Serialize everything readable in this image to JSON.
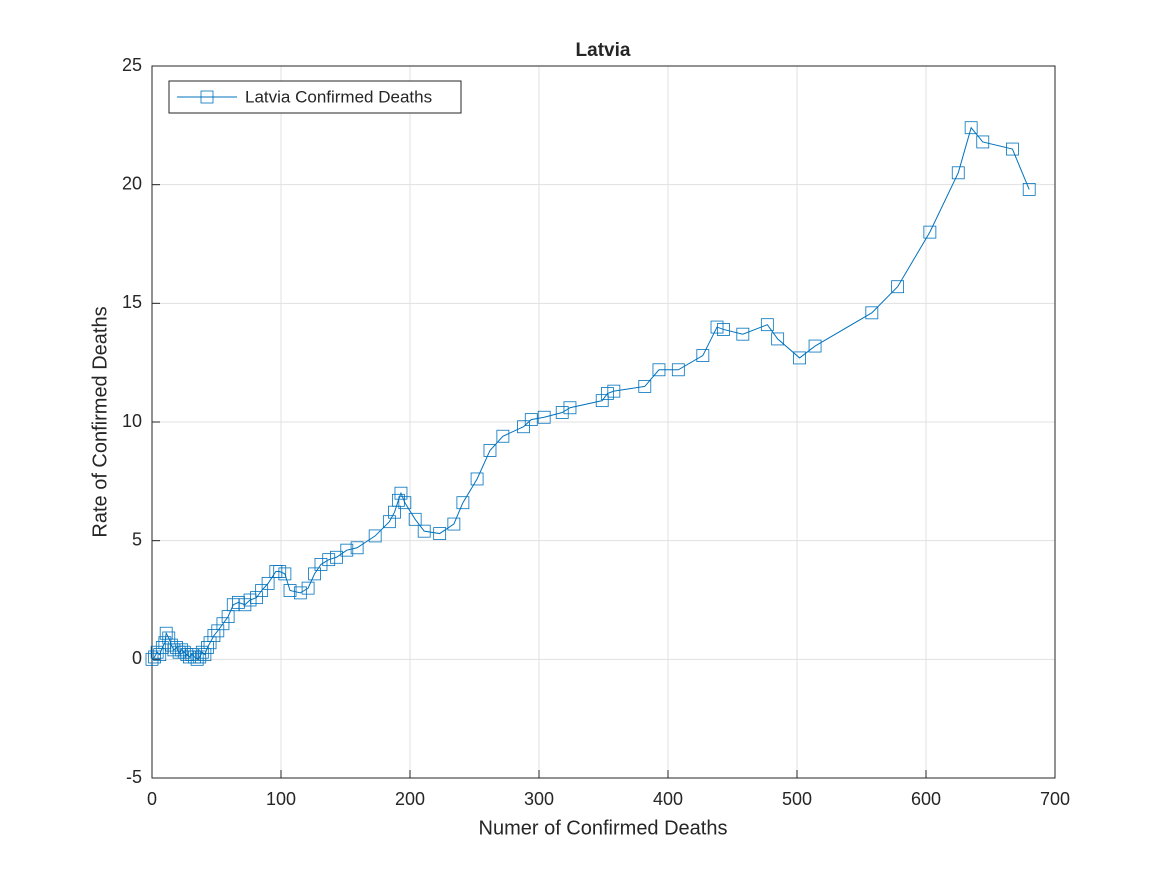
{
  "chart_data": {
    "type": "line",
    "title": "Latvia",
    "xlabel": "Numer of Confirmed Deaths",
    "ylabel": "Rate of Confirmed Deaths",
    "xlim": [
      0,
      700
    ],
    "xticks": [
      0,
      100,
      200,
      300,
      400,
      500,
      600,
      700
    ],
    "ylim": [
      -5,
      25
    ],
    "yticks": [
      -5,
      0,
      5,
      10,
      15,
      20,
      25
    ],
    "grid": true,
    "legend": "upper-left",
    "marker": "square",
    "series": [
      {
        "name": "Latvia Confirmed Deaths",
        "color": "#0072bd",
        "x": [
          0,
          2,
          4,
          6,
          8,
          10,
          11,
          13,
          15,
          17,
          19,
          21,
          23,
          25,
          27,
          29,
          31,
          33,
          35,
          37,
          39,
          41,
          43,
          45,
          48,
          51,
          55,
          59,
          63,
          67,
          72,
          76,
          81,
          85,
          90,
          96,
          99,
          103,
          107,
          115,
          121,
          126,
          131,
          137,
          143,
          151,
          159,
          173,
          184,
          188,
          191,
          193,
          196,
          204,
          211,
          223,
          234,
          241,
          252,
          262,
          272,
          288,
          294,
          304,
          318,
          324,
          349,
          353,
          358,
          382,
          393,
          408,
          427,
          438,
          443,
          458,
          477,
          485,
          502,
          514,
          558,
          578,
          603,
          625,
          635,
          644,
          667,
          680
        ],
        "values": [
          0,
          0.1,
          0.3,
          0.2,
          0.5,
          0.7,
          1.1,
          0.9,
          0.6,
          0.4,
          0.5,
          0.3,
          0.4,
          0.3,
          0.2,
          0.1,
          0.2,
          0.1,
          0,
          0.1,
          0.3,
          0.2,
          0.5,
          0.7,
          1,
          1.2,
          1.5,
          1.8,
          2.3,
          2.4,
          2.3,
          2.5,
          2.6,
          2.9,
          3.2,
          3.7,
          3.7,
          3.6,
          2.9,
          2.8,
          3,
          3.6,
          4,
          4.2,
          4.3,
          4.6,
          4.7,
          5.2,
          5.8,
          6.2,
          6.7,
          7,
          6.6,
          5.9,
          5.4,
          5.3,
          5.7,
          6.6,
          7.6,
          8.8,
          9.4,
          9.8,
          10.1,
          10.2,
          10.4,
          10.6,
          10.9,
          11.2,
          11.3,
          11.5,
          12.2,
          12.2,
          12.8,
          14,
          13.9,
          13.7,
          14.1,
          13.5,
          12.7,
          13.2,
          14.6,
          15.7,
          18,
          20.5,
          22.4,
          21.8,
          21.5,
          19.8
        ]
      }
    ]
  }
}
